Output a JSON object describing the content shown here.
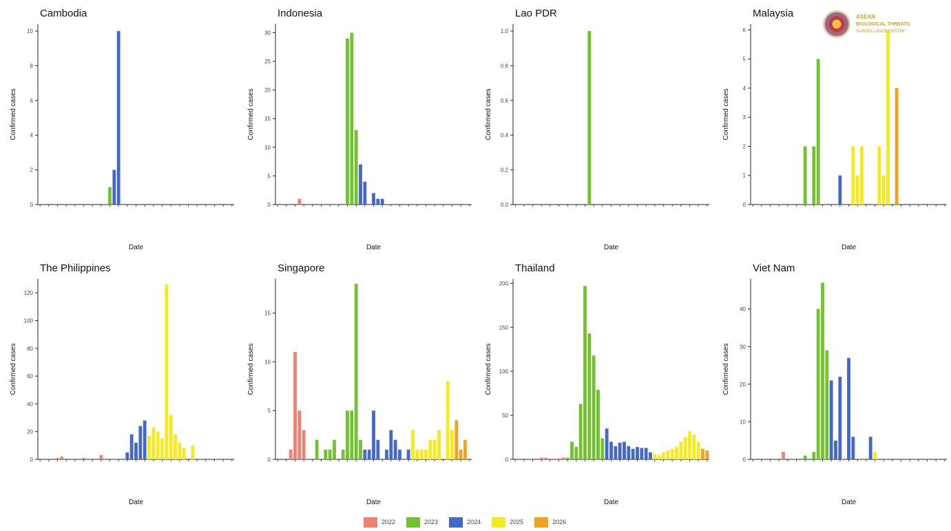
{
  "logo": {
    "line1": "ASEAN",
    "line2": "BIOLOGICAL THREATS",
    "line3": "SURVEILLANCE CENTRE"
  },
  "legend": {
    "items": [
      {
        "label": "2022",
        "color": "#f08072"
      },
      {
        "label": "2023",
        "color": "#72c12e"
      },
      {
        "label": "2024",
        "color": "#4468c8"
      },
      {
        "label": "2025",
        "color": "#f5ea1e"
      },
      {
        "label": "2026",
        "color": "#f2a21e"
      }
    ]
  },
  "chart_data": [
    {
      "type": "bar",
      "title": "Cambodia",
      "xlabel": "Date",
      "ylabel": "Confirmed cases",
      "ylim": [
        0,
        10.4
      ],
      "yticks": [
        "0",
        "2",
        "4",
        "6",
        "8",
        "10"
      ],
      "bars": [
        {
          "x": 16,
          "value": 1,
          "year": "2023"
        },
        {
          "x": 17,
          "value": 2,
          "year": "2024"
        },
        {
          "x": 18,
          "value": 10,
          "year": "2024"
        }
      ]
    },
    {
      "type": "bar",
      "title": "Indonesia",
      "xlabel": "Date",
      "ylabel": "Confirmed cases",
      "ylim": [
        0,
        31.5
      ],
      "yticks": [
        "0",
        "5",
        "10",
        "15",
        "20",
        "25",
        "30"
      ],
      "bars": [
        {
          "x": 5,
          "value": 1,
          "year": "2022"
        },
        {
          "x": 16,
          "value": 29,
          "year": "2023"
        },
        {
          "x": 17,
          "value": 30,
          "year": "2023"
        },
        {
          "x": 18,
          "value": 13,
          "year": "2023"
        },
        {
          "x": 19,
          "value": 7,
          "year": "2024"
        },
        {
          "x": 20,
          "value": 4,
          "year": "2024"
        },
        {
          "x": 22,
          "value": 2,
          "year": "2024"
        },
        {
          "x": 23,
          "value": 1,
          "year": "2024"
        },
        {
          "x": 24,
          "value": 1,
          "year": "2024"
        }
      ]
    },
    {
      "type": "bar",
      "title": "Lao PDR",
      "xlabel": "Date",
      "ylabel": "Confirmed cases",
      "ylim": [
        0,
        1.04
      ],
      "yticks": [
        "0.0",
        "0.2",
        "0.4",
        "0.6",
        "0.8",
        "1.0"
      ],
      "bars": [
        {
          "x": 17,
          "value": 1,
          "year": "2023"
        }
      ]
    },
    {
      "type": "bar",
      "title": "Malaysia",
      "xlabel": "Date",
      "ylabel": "Confirmed cases",
      "ylim": [
        0,
        6.2
      ],
      "yticks": [
        "0",
        "1",
        "2",
        "3",
        "4",
        "5",
        "6"
      ],
      "bars": [
        {
          "x": 12,
          "value": 2,
          "year": "2023"
        },
        {
          "x": 14,
          "value": 2,
          "year": "2023"
        },
        {
          "x": 15,
          "value": 5,
          "year": "2023"
        },
        {
          "x": 20,
          "value": 1,
          "year": "2024"
        },
        {
          "x": 23,
          "value": 2,
          "year": "2025"
        },
        {
          "x": 24,
          "value": 1,
          "year": "2025"
        },
        {
          "x": 25,
          "value": 2,
          "year": "2025"
        },
        {
          "x": 29,
          "value": 2,
          "year": "2025"
        },
        {
          "x": 30,
          "value": 1,
          "year": "2025"
        },
        {
          "x": 31,
          "value": 6,
          "year": "2025"
        },
        {
          "x": 33,
          "value": 4,
          "year": "2026"
        }
      ]
    },
    {
      "type": "bar",
      "title": "The Philippines",
      "xlabel": "Date",
      "ylabel": "Confirmed cases",
      "ylim": [
        0,
        130
      ],
      "yticks": [
        "0",
        "20",
        "40",
        "60",
        "80",
        "100",
        "120"
      ],
      "bars": [
        {
          "x": 4,
          "value": 1,
          "year": "2022"
        },
        {
          "x": 5,
          "value": 2,
          "year": "2022"
        },
        {
          "x": 10,
          "value": 1,
          "year": "2022"
        },
        {
          "x": 14,
          "value": 3,
          "year": "2022"
        },
        {
          "x": 20,
          "value": 5,
          "year": "2024"
        },
        {
          "x": 21,
          "value": 18,
          "year": "2024"
        },
        {
          "x": 22,
          "value": 12,
          "year": "2024"
        },
        {
          "x": 23,
          "value": 24,
          "year": "2024"
        },
        {
          "x": 24,
          "value": 28,
          "year": "2024"
        },
        {
          "x": 25,
          "value": 17,
          "year": "2025"
        },
        {
          "x": 26,
          "value": 23,
          "year": "2025"
        },
        {
          "x": 27,
          "value": 20,
          "year": "2025"
        },
        {
          "x": 28,
          "value": 15,
          "year": "2025"
        },
        {
          "x": 29,
          "value": 126,
          "year": "2025"
        },
        {
          "x": 30,
          "value": 32,
          "year": "2025"
        },
        {
          "x": 31,
          "value": 18,
          "year": "2025"
        },
        {
          "x": 32,
          "value": 12,
          "year": "2025"
        },
        {
          "x": 33,
          "value": 8,
          "year": "2025"
        },
        {
          "x": 35,
          "value": 10,
          "year": "2025"
        }
      ]
    },
    {
      "type": "bar",
      "title": "Singapore",
      "xlabel": "Date",
      "ylabel": "Confirmed cases",
      "ylim": [
        0,
        18.5
      ],
      "yticks": [
        "0",
        "5",
        "10",
        "15"
      ],
      "bars": [
        {
          "x": 3,
          "value": 1,
          "year": "2022"
        },
        {
          "x": 4,
          "value": 11,
          "year": "2022"
        },
        {
          "x": 5,
          "value": 5,
          "year": "2022"
        },
        {
          "x": 6,
          "value": 3,
          "year": "2022"
        },
        {
          "x": 9,
          "value": 2,
          "year": "2023"
        },
        {
          "x": 11,
          "value": 1,
          "year": "2023"
        },
        {
          "x": 12,
          "value": 1,
          "year": "2023"
        },
        {
          "x": 13,
          "value": 2,
          "year": "2023"
        },
        {
          "x": 15,
          "value": 1,
          "year": "2023"
        },
        {
          "x": 16,
          "value": 5,
          "year": "2023"
        },
        {
          "x": 17,
          "value": 5,
          "year": "2023"
        },
        {
          "x": 18,
          "value": 18,
          "year": "2023"
        },
        {
          "x": 19,
          "value": 2,
          "year": "2023"
        },
        {
          "x": 20,
          "value": 1,
          "year": "2024"
        },
        {
          "x": 21,
          "value": 1,
          "year": "2024"
        },
        {
          "x": 22,
          "value": 5,
          "year": "2024"
        },
        {
          "x": 23,
          "value": 2,
          "year": "2024"
        },
        {
          "x": 25,
          "value": 1,
          "year": "2024"
        },
        {
          "x": 26,
          "value": 3,
          "year": "2024"
        },
        {
          "x": 27,
          "value": 2,
          "year": "2024"
        },
        {
          "x": 28,
          "value": 1,
          "year": "2024"
        },
        {
          "x": 30,
          "value": 1,
          "year": "2024"
        },
        {
          "x": 31,
          "value": 3,
          "year": "2025"
        },
        {
          "x": 32,
          "value": 1,
          "year": "2025"
        },
        {
          "x": 33,
          "value": 1,
          "year": "2025"
        },
        {
          "x": 34,
          "value": 1,
          "year": "2025"
        },
        {
          "x": 35,
          "value": 2,
          "year": "2025"
        },
        {
          "x": 36,
          "value": 2,
          "year": "2025"
        },
        {
          "x": 37,
          "value": 3,
          "year": "2025"
        },
        {
          "x": 39,
          "value": 8,
          "year": "2025"
        },
        {
          "x": 40,
          "value": 3,
          "year": "2025"
        },
        {
          "x": 41,
          "value": 4,
          "year": "2026"
        },
        {
          "x": 42,
          "value": 1,
          "year": "2026"
        },
        {
          "x": 43,
          "value": 2,
          "year": "2026"
        }
      ]
    },
    {
      "type": "bar",
      "title": "Thailand",
      "xlabel": "Date",
      "ylabel": "Confirmed cases",
      "ylim": [
        0,
        205
      ],
      "yticks": [
        "0",
        "50",
        "100",
        "150",
        "200"
      ],
      "bars": [
        {
          "x": 4,
          "value": 1,
          "year": "2022"
        },
        {
          "x": 5,
          "value": 1,
          "year": "2022"
        },
        {
          "x": 6,
          "value": 2,
          "year": "2022"
        },
        {
          "x": 7,
          "value": 2,
          "year": "2022"
        },
        {
          "x": 10,
          "value": 1,
          "year": "2022"
        },
        {
          "x": 11,
          "value": 2,
          "year": "2022"
        },
        {
          "x": 12,
          "value": 2,
          "year": "2023"
        },
        {
          "x": 13,
          "value": 20,
          "year": "2023"
        },
        {
          "x": 14,
          "value": 14,
          "year": "2023"
        },
        {
          "x": 15,
          "value": 63,
          "year": "2023"
        },
        {
          "x": 16,
          "value": 197,
          "year": "2023"
        },
        {
          "x": 17,
          "value": 143,
          "year": "2023"
        },
        {
          "x": 18,
          "value": 118,
          "year": "2023"
        },
        {
          "x": 19,
          "value": 79,
          "year": "2023"
        },
        {
          "x": 20,
          "value": 24,
          "year": "2023"
        },
        {
          "x": 21,
          "value": 35,
          "year": "2024"
        },
        {
          "x": 22,
          "value": 20,
          "year": "2024"
        },
        {
          "x": 23,
          "value": 15,
          "year": "2024"
        },
        {
          "x": 24,
          "value": 19,
          "year": "2024"
        },
        {
          "x": 25,
          "value": 20,
          "year": "2024"
        },
        {
          "x": 26,
          "value": 15,
          "year": "2024"
        },
        {
          "x": 27,
          "value": 12,
          "year": "2024"
        },
        {
          "x": 28,
          "value": 14,
          "year": "2024"
        },
        {
          "x": 29,
          "value": 13,
          "year": "2024"
        },
        {
          "x": 30,
          "value": 13,
          "year": "2024"
        },
        {
          "x": 31,
          "value": 8,
          "year": "2024"
        },
        {
          "x": 32,
          "value": 6,
          "year": "2025"
        },
        {
          "x": 33,
          "value": 5,
          "year": "2025"
        },
        {
          "x": 34,
          "value": 8,
          "year": "2025"
        },
        {
          "x": 35,
          "value": 10,
          "year": "2025"
        },
        {
          "x": 36,
          "value": 12,
          "year": "2025"
        },
        {
          "x": 37,
          "value": 14,
          "year": "2025"
        },
        {
          "x": 38,
          "value": 20,
          "year": "2025"
        },
        {
          "x": 39,
          "value": 25,
          "year": "2025"
        },
        {
          "x": 40,
          "value": 32,
          "year": "2025"
        },
        {
          "x": 41,
          "value": 28,
          "year": "2025"
        },
        {
          "x": 42,
          "value": 20,
          "year": "2025"
        },
        {
          "x": 43,
          "value": 12,
          "year": "2026"
        },
        {
          "x": 44,
          "value": 10,
          "year": "2026"
        }
      ]
    },
    {
      "type": "bar",
      "title": "Viet Nam",
      "xlabel": "Date",
      "ylabel": "Confirmed cases",
      "ylim": [
        0,
        48
      ],
      "yticks": [
        "0",
        "10",
        "20",
        "30",
        "40"
      ],
      "bars": [
        {
          "x": 7,
          "value": 2,
          "year": "2022"
        },
        {
          "x": 12,
          "value": 1,
          "year": "2023"
        },
        {
          "x": 14,
          "value": 2,
          "year": "2023"
        },
        {
          "x": 15,
          "value": 40,
          "year": "2023"
        },
        {
          "x": 16,
          "value": 47,
          "year": "2023"
        },
        {
          "x": 17,
          "value": 29,
          "year": "2023"
        },
        {
          "x": 18,
          "value": 21,
          "year": "2024"
        },
        {
          "x": 19,
          "value": 5,
          "year": "2024"
        },
        {
          "x": 20,
          "value": 22,
          "year": "2024"
        },
        {
          "x": 22,
          "value": 27,
          "year": "2024"
        },
        {
          "x": 23,
          "value": 6,
          "year": "2024"
        },
        {
          "x": 27,
          "value": 6,
          "year": "2024"
        },
        {
          "x": 28,
          "value": 2,
          "year": "2025"
        }
      ]
    }
  ]
}
